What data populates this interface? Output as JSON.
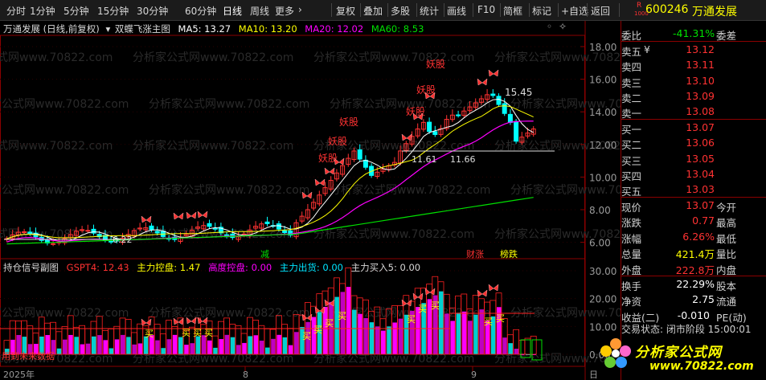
{
  "toolbar": {
    "items": [
      "分时",
      "1分钟",
      "5分钟",
      "15分钟",
      "30分钟",
      "60分钟",
      "日线",
      "周线",
      "更多",
      "复权",
      "叠加",
      "多股",
      "统计",
      "画线",
      "F10",
      "简框",
      "标记",
      "+自选",
      "返回"
    ],
    "more_arrow": "›"
  },
  "stock": {
    "badge_r": "R",
    "badge_num": "1000",
    "code": "600246",
    "name": "万通发展"
  },
  "main_chart": {
    "title": "万通发展 (日线,前复权)",
    "indicator": "双蝶飞涨主图",
    "ma5_label": "MA5: 13.27",
    "ma10_label": "MA10: 13.20",
    "ma20_label": "MA20: 12.02",
    "ma60_label": "MA60: 8.53",
    "price_ticks": [
      "18.00",
      "16.00",
      "14.00",
      "12.00",
      "10.00",
      "8.00",
      "6.00"
    ],
    "annotations": {
      "high": "15.45",
      "low": "6.22",
      "mid1": "11.61",
      "mid2": "11.66",
      "yao": "妖股",
      "jian": "减",
      "caizhang": "财涨",
      "bangdie": "榜跌"
    },
    "watermark": "分析家公式网www.70822.com"
  },
  "sub_chart": {
    "title": "持仓信号副图",
    "gspt": "GSPT4: 12.43",
    "zlkp": "主力控盘: 1.47",
    "gdkp": "高度控盘: 0.00",
    "zlcc": "主力出货: 0.00",
    "zlmr": "主力买入5: 0.00",
    "ticks": [
      "30.00",
      "20.00",
      "10.00",
      "0.00"
    ],
    "buy": "买",
    "future_warn": "用到未来数据"
  },
  "date_axis": {
    "labels": [
      "2025年",
      "8",
      "9",
      "日"
    ]
  },
  "colors": {
    "up": "#ff3232",
    "down": "#00ffff",
    "ma5": "#ffffff",
    "ma10": "#ffff00",
    "ma20": "#ff00ff",
    "ma60": "#00e000",
    "border": "#8b0000"
  },
  "quote": {
    "weibi": {
      "label": "委比",
      "value": "-41.31%",
      "right": "委差"
    },
    "asks": [
      {
        "label": "卖五",
        "mark": "¥",
        "price": "13.12"
      },
      {
        "label": "卖四",
        "mark": "",
        "price": "13.11"
      },
      {
        "label": "卖三",
        "mark": "",
        "price": "13.10"
      },
      {
        "label": "卖二",
        "mark": "",
        "price": "13.09"
      },
      {
        "label": "卖一",
        "mark": "",
        "price": "13.08"
      }
    ],
    "bids": [
      {
        "label": "买一",
        "price": "13.07"
      },
      {
        "label": "买二",
        "price": "13.06"
      },
      {
        "label": "买三",
        "price": "13.05"
      },
      {
        "label": "买四",
        "price": "13.04"
      },
      {
        "label": "买五",
        "price": "13.03"
      }
    ],
    "stats": [
      {
        "label": "现价",
        "value": "13.07",
        "right": "今开"
      },
      {
        "label": "涨跌",
        "value": "0.77",
        "right": "最高"
      },
      {
        "label": "涨幅",
        "value": "6.26%",
        "right": "最低"
      },
      {
        "label": "总量",
        "value": "421.4万",
        "right": "量比"
      },
      {
        "label": "外盘",
        "value": "222.8万",
        "right": "内盘"
      }
    ],
    "stats2": [
      {
        "label": "换手",
        "value": "22.29%",
        "right": "股本"
      },
      {
        "label": "净资",
        "value": "2.75",
        "right": "流通"
      },
      {
        "label": "收益(二)",
        "value": "-0.010",
        "right": "PE(动)"
      }
    ],
    "trade_status": "交易状态: 闭市阶段 15:00:01"
  },
  "logo": {
    "text": "分析家公式网",
    "url": "www.70822.com"
  }
}
